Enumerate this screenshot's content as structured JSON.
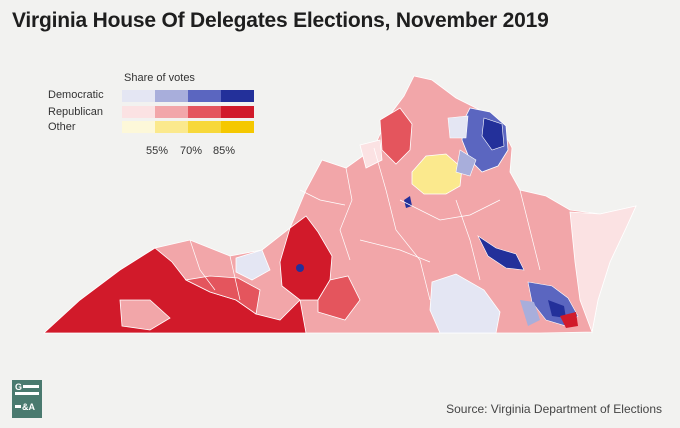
{
  "title": "Virginia House Of Delegates Elections, November 2019",
  "legend": {
    "title": "Share of votes",
    "rows": [
      {
        "label": "Democratic",
        "colors": [
          "#e4e6f3",
          "#a8aedb",
          "#5b66c0",
          "#23309a"
        ]
      },
      {
        "label": "Republican",
        "colors": [
          "#fbe2e3",
          "#f2a6a9",
          "#e4555d",
          "#d11a2a"
        ]
      },
      {
        "label": "Other",
        "colors": [
          "#fdf8d9",
          "#fbe98d",
          "#f7d83a",
          "#f5c800"
        ]
      }
    ],
    "ticks": [
      "55%",
      "70%",
      "85%"
    ]
  },
  "source": "Source: Virginia Department of Elections",
  "logo": {
    "top": "G",
    "bottom": "&A"
  }
}
